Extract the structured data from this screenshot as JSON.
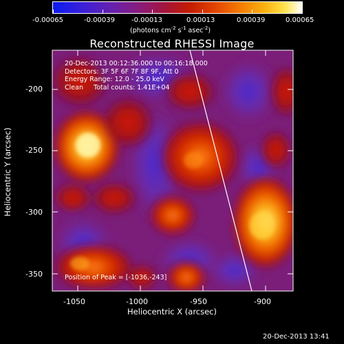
{
  "title": "Reconstructed RHESSI Image",
  "colorbar": {
    "tick_labels": [
      "-0.00065",
      "-0.00039",
      "-0.00013",
      "0.00013",
      "0.00039",
      "0.00065"
    ],
    "units_label": "(photons cm",
    "units_exp1": "-2",
    "units_mid": " s",
    "units_exp2": "-1",
    "units_mid2": " asec",
    "units_exp3": "-2",
    "units_end": ")"
  },
  "info": {
    "line1": "20-Dec-2013 00:12:36.000 to 00:16:18.000",
    "line2": "Detectors: 3F 5F 6F 7F 8F 9F, Att 0",
    "line3": "Energy Range: 12.0 - 25.0 keV",
    "line4": "Clean     Total counts: 1.41E+04"
  },
  "peak_label": "Position of Peak = [-1036,-243]",
  "x_axis": {
    "label": "Heliocentric X (arcsec)",
    "ticks": [
      "-1050",
      "-1000",
      "-950",
      "-900"
    ],
    "range": [
      -1067,
      -875
    ]
  },
  "y_axis": {
    "label": "Heliocentric Y (arcsec)",
    "ticks": [
      "-200",
      "-250",
      "-300",
      "-350"
    ],
    "range": [
      -365,
      -174
    ]
  },
  "footer_timestamp": "20-Dec-2013 13:41",
  "colors": {
    "background": "#000000",
    "text": "#ffffff",
    "limb": "#ffffff"
  }
}
